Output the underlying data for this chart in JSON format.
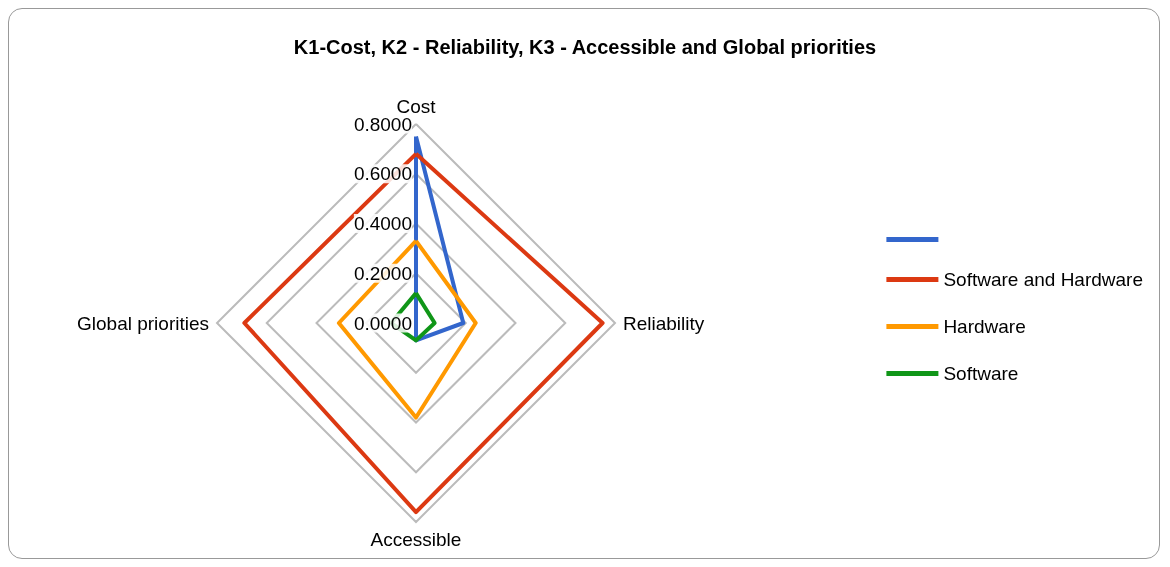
{
  "chart_data": {
    "type": "radar",
    "title": "K1-Cost, K2 - Reliability, K3 - Accessible and Global priorities",
    "categories": [
      "Cost",
      "Reliability",
      "Accessible",
      "Global priorities"
    ],
    "ylim": [
      0,
      0.8
    ],
    "yticks": [
      {
        "value": 0,
        "label": "0.0000"
      },
      {
        "value": 0.2,
        "label": "0.2000"
      },
      {
        "value": 0.4,
        "label": "0.4000"
      },
      {
        "value": 0.6,
        "label": "0.6000"
      },
      {
        "value": 0.8,
        "label": "0.8000"
      }
    ],
    "legend": "right",
    "marker": "none",
    "grid": true,
    "series": [
      {
        "color": "#3366cc",
        "values": [
          0.75,
          0.19,
          0.07,
          0
        ]
      },
      {
        "name": "Software and Hardware",
        "color": "#dc3912",
        "values": [
          0.68,
          0.75,
          0.76,
          0.69
        ]
      },
      {
        "name": "Hardware",
        "color": "#ff9900",
        "values": [
          0.33,
          0.24,
          0.38,
          0.31
        ]
      },
      {
        "name": "Software",
        "color": "#109618",
        "values": [
          0.12,
          0.075,
          0.07,
          0.1
        ]
      }
    ]
  }
}
